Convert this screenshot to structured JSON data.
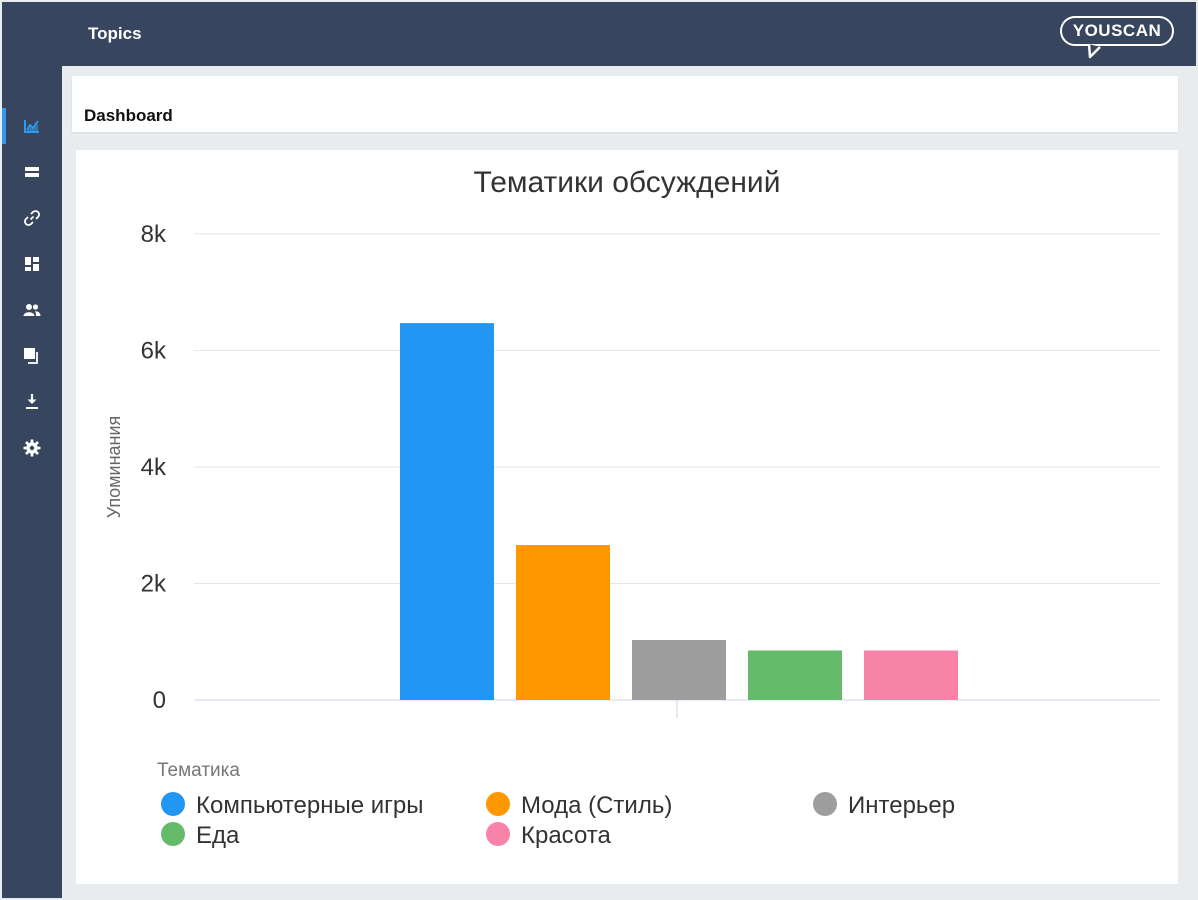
{
  "app": {
    "title": "Topics",
    "logo_text": "YOUSCAN"
  },
  "sidebar": {
    "items": [
      {
        "name": "analytics-icon",
        "active": true
      },
      {
        "name": "mentions-icon",
        "active": false
      },
      {
        "name": "link-icon",
        "active": false
      },
      {
        "name": "dashboard-icon",
        "active": false
      },
      {
        "name": "authors-icon",
        "active": false
      },
      {
        "name": "copy-icon",
        "active": false
      },
      {
        "name": "download-icon",
        "active": false
      },
      {
        "name": "settings-icon",
        "active": false
      }
    ]
  },
  "header": {
    "title": "Dashboard"
  },
  "chart_data": {
    "type": "bar",
    "title": "Тематики обсуждений",
    "xlabel": "",
    "ylabel": "Упоминания",
    "ylim": [
      0,
      8000
    ],
    "yticks": [
      0,
      2000,
      4000,
      6000,
      8000
    ],
    "ytick_labels": [
      "0",
      "2k",
      "4k",
      "6k",
      "8k"
    ],
    "grid": true,
    "legend_title": "Тематика",
    "legend_position": "bottom",
    "categories": [
      "Компьютерные игры",
      "Мода (Стиль)",
      "Интерьер",
      "Еда",
      "Красота"
    ],
    "values": [
      6470,
      2660,
      1030,
      850,
      850
    ],
    "colors": [
      "#2196f3",
      "#ff9800",
      "#9e9e9e",
      "#66bb6a",
      "#f784a8"
    ]
  },
  "colors": {
    "sidebar_bg": "#37455e",
    "accent": "#2d9cf0",
    "page_bg": "#e9ecef"
  }
}
